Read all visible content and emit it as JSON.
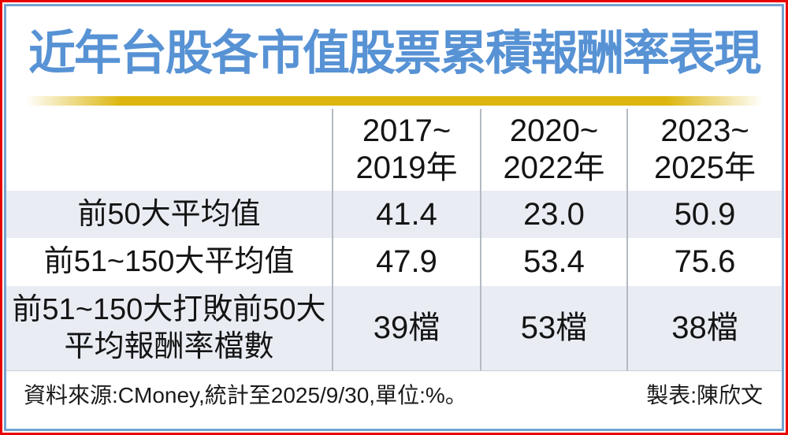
{
  "title": "近年台股各市值股票累積報酬率表現",
  "table": {
    "headers": [
      {
        "line1": "2017~",
        "line2": "2019年"
      },
      {
        "line1": "2020~",
        "line2": "2022年"
      },
      {
        "line1": "2023~",
        "line2": "2025年"
      }
    ],
    "rows": [
      {
        "label": "前50大平均值",
        "values": [
          "41.4",
          "23.0",
          "50.9"
        ]
      },
      {
        "label": "前51~150大平均值",
        "values": [
          "47.9",
          "53.4",
          "75.6"
        ]
      },
      {
        "label_line1": "前51~150大打敗前50大",
        "label_line2": "平均報酬率檔數",
        "values": [
          "39檔",
          "53檔",
          "38檔"
        ]
      }
    ]
  },
  "footer": {
    "source": "資料來源:CMoney,統計至2025/9/30,單位:%。",
    "credit": "製表:陳欣文"
  },
  "colors": {
    "title_blue": "#5792d4",
    "outer_border_red": "#e80000",
    "inner_border_blue": "#74a3d2",
    "gold_bar": "#dcb60e",
    "row_shade": "#e9edf3",
    "divider_gray": "#b4bac2",
    "text_black": "#141414"
  },
  "chart_data": {
    "type": "table",
    "title": "近年台股各市值股票累積報酬率表現",
    "columns": [
      "2017~2019年",
      "2020~2022年",
      "2023~2025年"
    ],
    "row_labels": [
      "前50大平均值",
      "前51~150大平均值",
      "前51~150大打敗前50大平均報酬率檔數"
    ],
    "series": [
      {
        "name": "前50大平均值",
        "values": [
          41.4,
          23.0,
          50.9
        ]
      },
      {
        "name": "前51~150大平均值",
        "values": [
          47.9,
          53.4,
          75.6
        ]
      },
      {
        "name": "前51~150大打敗前50大平均報酬率檔數",
        "values": [
          "39檔",
          "53檔",
          "38檔"
        ]
      }
    ],
    "unit": "%",
    "source": "CMoney",
    "as_of": "2025/9/30"
  }
}
